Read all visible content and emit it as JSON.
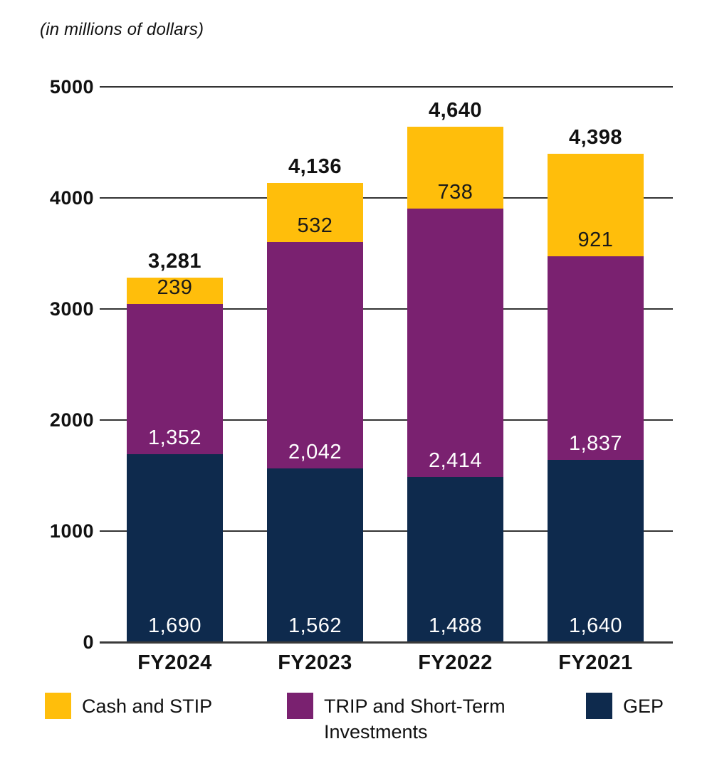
{
  "title": "(in millions of dollars)",
  "colors": {
    "background": "#ffffff",
    "grid": "#333333",
    "axis": "#3a3a3a",
    "text_dark": "#111111",
    "label_light": "#ffffff"
  },
  "chart_data": {
    "type": "bar",
    "stacked": true,
    "title": "(in millions of dollars)",
    "xlabel": "",
    "ylabel": "",
    "categories": [
      "FY2024",
      "FY2023",
      "FY2022",
      "FY2021"
    ],
    "series": [
      {
        "name": "Cash and STIP",
        "color": "#FFBE0B",
        "label_color": "#1a1a1a",
        "values": [
          239,
          532,
          738,
          921
        ],
        "labels": [
          "239",
          "532",
          "738",
          "921"
        ]
      },
      {
        "name": "TRIP and Short-Term Investments",
        "color": "#7A2170",
        "label_color": "#ffffff",
        "values": [
          1352,
          2042,
          2414,
          1837
        ],
        "labels": [
          "1,352",
          "2,042",
          "2,414",
          "1,837"
        ]
      },
      {
        "name": "GEP",
        "color": "#0E2A4D",
        "label_color": "#ffffff",
        "values": [
          1690,
          1562,
          1488,
          1640
        ],
        "labels": [
          "1,690",
          "1,562",
          "1,488",
          "1,640"
        ]
      }
    ],
    "stack_order_bottom_to_top": [
      "GEP",
      "TRIP and Short-Term Investments",
      "Cash and STIP"
    ],
    "totals": [
      3281,
      4136,
      4640,
      4398
    ],
    "total_labels": [
      "3,281",
      "4,136",
      "4,640",
      "4,398"
    ],
    "yticks": [
      5000,
      4000,
      3000,
      2000,
      1000,
      0
    ],
    "ylim": [
      0,
      5000
    ],
    "grid": true,
    "legend_position": "bottom"
  }
}
